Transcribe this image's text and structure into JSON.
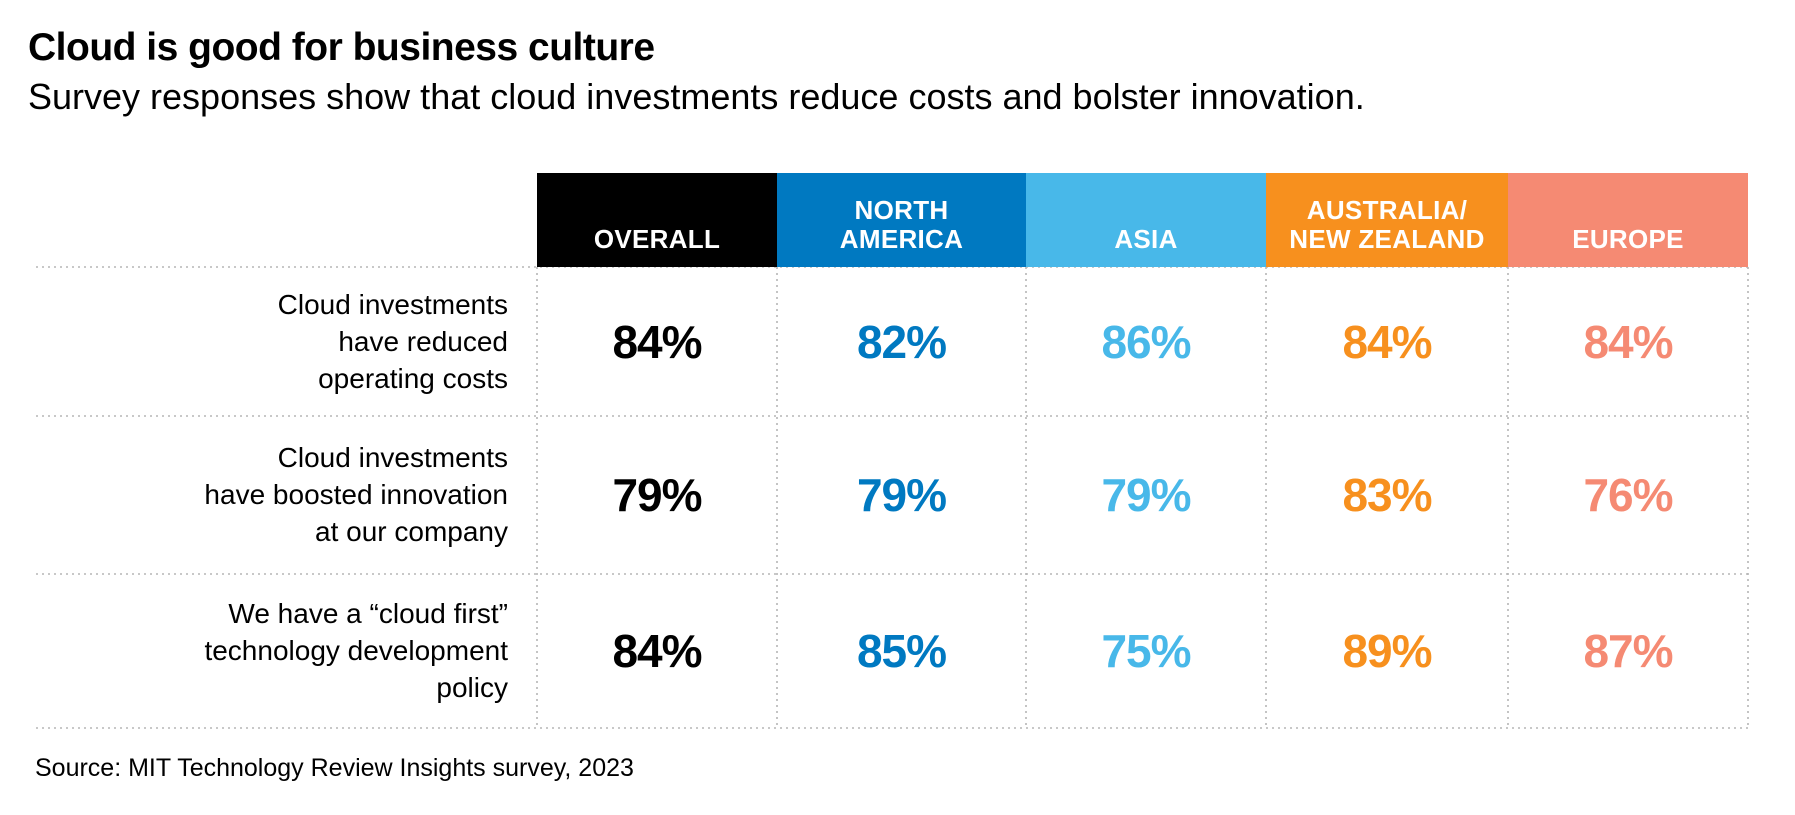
{
  "title": "Cloud is good for business culture",
  "subtitle": "Survey responses show that cloud investments reduce costs and bolster innovation.",
  "source": "Source: MIT Technology Review Insights survey, 2023",
  "colors": {
    "overall": "#000000",
    "north_america": "#0079c1",
    "asia": "#48b8e9",
    "australia_nz": "#f7901e",
    "europe": "#f58a73",
    "gridline": "#b5b5b5"
  },
  "chart_data": {
    "type": "table",
    "columns": [
      "OVERALL",
      "NORTH\nAMERICA",
      "ASIA",
      "AUSTRALIA/\nNEW ZEALAND",
      "EUROPE"
    ],
    "rows": [
      "Cloud investments\nhave reduced\noperating costs",
      "Cloud investments\nhave boosted innovation\nat our company",
      "We have a “cloud first”\ntechnology development\npolicy"
    ],
    "values": [
      [
        "84%",
        "82%",
        "86%",
        "84%",
        "84%"
      ],
      [
        "79%",
        "79%",
        "79%",
        "83%",
        "76%"
      ],
      [
        "84%",
        "85%",
        "75%",
        "89%",
        "87%"
      ]
    ]
  }
}
